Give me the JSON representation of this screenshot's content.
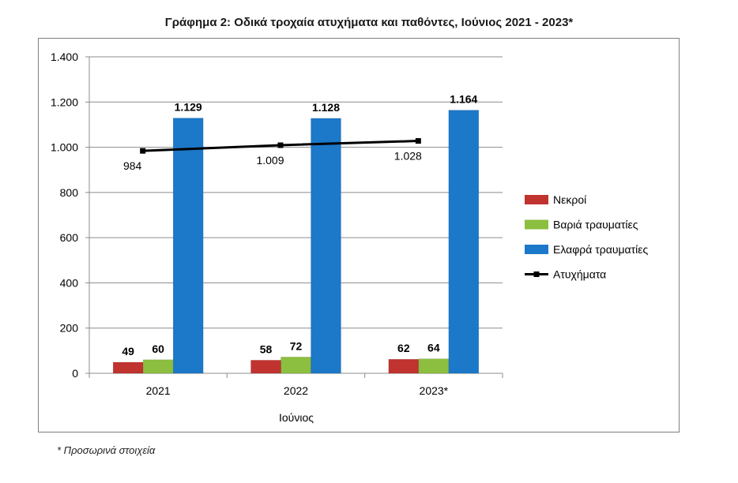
{
  "chart_data": {
    "type": "bar",
    "title": "Γράφημα 2: Οδικά τροχαία ατυχήματα και παθόντες, Ιούνιος 2021 - 2023*",
    "xlabel": "Ιούνιος",
    "ylabel": "",
    "ylim": [
      0,
      1400
    ],
    "yticks": [
      0,
      200,
      400,
      600,
      800,
      1000,
      1200,
      1400
    ],
    "ytick_labels": [
      "0",
      "200",
      "400",
      "600",
      "800",
      "1.000",
      "1.200",
      "1.400"
    ],
    "grid": true,
    "legend_position": "right",
    "categories": [
      "2021",
      "2022",
      "2023*"
    ],
    "series": [
      {
        "name": "Νεκροί",
        "kind": "bar",
        "color": "#c0332f",
        "values": [
          49,
          58,
          62
        ],
        "labels": [
          "49",
          "58",
          "62"
        ]
      },
      {
        "name": "Βαριά τραυματίες",
        "kind": "bar",
        "color": "#8cbf3f",
        "values": [
          60,
          72,
          64
        ],
        "labels": [
          "60",
          "72",
          "64"
        ]
      },
      {
        "name": "Ελαφρά τραυματίες",
        "kind": "bar",
        "color": "#1c78c8",
        "values": [
          1129,
          1128,
          1164
        ],
        "labels": [
          "1.129",
          "1.128",
          "1.164"
        ]
      },
      {
        "name": "Ατυχήματα",
        "kind": "line",
        "color": "#000000",
        "values": [
          984,
          1009,
          1028
        ],
        "labels": [
          "984",
          "1.009",
          "1.028"
        ]
      }
    ]
  },
  "footnote": "* Προσωρινά στοιχεία"
}
